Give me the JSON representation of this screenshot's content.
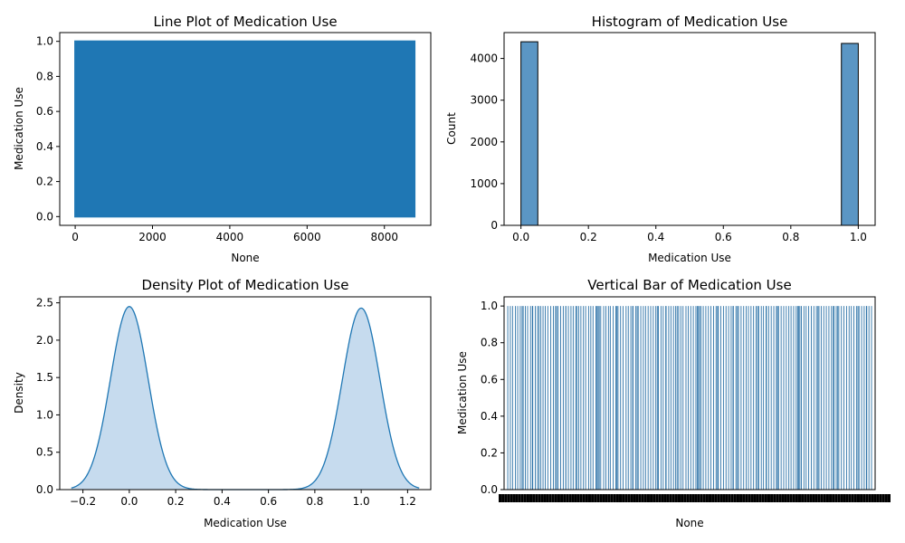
{
  "chart_data": [
    {
      "type": "line",
      "title": "Line Plot of Medication Use",
      "xlabel": "None",
      "ylabel": "Medication Use",
      "xlim": [
        -400,
        9200
      ],
      "ylim": [
        -0.05,
        1.05
      ],
      "xticks": [
        0,
        2000,
        4000,
        6000,
        8000
      ],
      "xtick_labels": [
        "0",
        "2000",
        "4000",
        "6000",
        "8000"
      ],
      "yticks": [
        0,
        0.2,
        0.4,
        0.6,
        0.8,
        1.0
      ],
      "ytick_labels": [
        "0.0",
        "0.2",
        "0.4",
        "0.6",
        "0.8",
        "1.0"
      ],
      "x_range": [
        0,
        8780
      ],
      "values_alternate_between": [
        0,
        1
      ],
      "color": "#1f77b4",
      "grid": false
    },
    {
      "type": "bar",
      "title": "Histogram of Medication Use",
      "xlabel": "Medication Use",
      "ylabel": "Count",
      "xlim": [
        -0.05,
        1.05
      ],
      "ylim": [
        0,
        4620
      ],
      "xticks": [
        0,
        0.2,
        0.4,
        0.6,
        0.8,
        1.0
      ],
      "xtick_labels": [
        "0.0",
        "0.2",
        "0.4",
        "0.6",
        "0.8",
        "1.0"
      ],
      "yticks": [
        0,
        1000,
        2000,
        3000,
        4000
      ],
      "ytick_labels": [
        "0",
        "1000",
        "2000",
        "3000",
        "4000"
      ],
      "bins": [
        {
          "x0": 0.0,
          "x1": 0.05,
          "count": 4400
        },
        {
          "x0": 0.95,
          "x1": 1.0,
          "count": 4360
        }
      ],
      "color": "#5b96c4",
      "edge_color": "#000000",
      "grid": false
    },
    {
      "type": "area",
      "title": "Density Plot of Medication Use",
      "xlabel": "Medication Use",
      "ylabel": "Density",
      "xlim": [
        -0.3,
        1.3
      ],
      "ylim": [
        0,
        2.58
      ],
      "xticks": [
        -0.2,
        0.0,
        0.2,
        0.4,
        0.6,
        0.8,
        1.0,
        1.2
      ],
      "xtick_labels": [
        "−0.2",
        "0.0",
        "0.2",
        "0.4",
        "0.6",
        "0.8",
        "1.0",
        "1.2"
      ],
      "yticks": [
        0,
        0.5,
        1.0,
        1.5,
        2.0,
        2.5
      ],
      "ytick_labels": [
        "0.0",
        "0.5",
        "1.0",
        "1.5",
        "2.0",
        "2.5"
      ],
      "x_span": [
        -0.25,
        1.25
      ],
      "peaks": [
        {
          "center": 0.0,
          "height": 2.45,
          "sigma": 0.081
        },
        {
          "center": 1.0,
          "height": 2.43,
          "sigma": 0.081
        }
      ],
      "line_color": "#1f77b4",
      "fill_color": "#c6dbee",
      "grid": false
    },
    {
      "type": "bar",
      "title": "Vertical Bar of Medication Use",
      "xlabel": "None",
      "ylabel": "Medication Use",
      "ylim": [
        0,
        1.05
      ],
      "yticks": [
        0,
        0.2,
        0.4,
        0.6,
        0.8,
        1.0
      ],
      "ytick_labels": [
        "0.0",
        "0.2",
        "0.4",
        "0.6",
        "0.8",
        "1.0"
      ],
      "category_count": 8780,
      "bar_value": 1.0,
      "visible_bar_positions": [
        0.004,
        0.011,
        0.017,
        0.025,
        0.031,
        0.038,
        0.046,
        0.052,
        0.058,
        0.066,
        0.072,
        0.079,
        0.085,
        0.094,
        0.1,
        0.106,
        0.113,
        0.121,
        0.128,
        0.134,
        0.141,
        0.148,
        0.155,
        0.162,
        0.169,
        0.176,
        0.182,
        0.189,
        0.197,
        0.203,
        0.21,
        0.216,
        0.224,
        0.23,
        0.236,
        0.244,
        0.25,
        0.257,
        0.265,
        0.271,
        0.278,
        0.283,
        0.291,
        0.298,
        0.304,
        0.311,
        0.318,
        0.326,
        0.332,
        0.339,
        0.345,
        0.352,
        0.359,
        0.366,
        0.373,
        0.379,
        0.386,
        0.393,
        0.4,
        0.407,
        0.414,
        0.421,
        0.427,
        0.434,
        0.442,
        0.448,
        0.455,
        0.461,
        0.469,
        0.475,
        0.481,
        0.489,
        0.495,
        0.502,
        0.509,
        0.516,
        0.523,
        0.53,
        0.536,
        0.543,
        0.55,
        0.557,
        0.564,
        0.571,
        0.577,
        0.584,
        0.591,
        0.598,
        0.605,
        0.612,
        0.618,
        0.625,
        0.632,
        0.639,
        0.646,
        0.653,
        0.659,
        0.666,
        0.673,
        0.68,
        0.687,
        0.694,
        0.7,
        0.707,
        0.714,
        0.721,
        0.728,
        0.735,
        0.741,
        0.748,
        0.755,
        0.762,
        0.769,
        0.775,
        0.782,
        0.789,
        0.796,
        0.803,
        0.81,
        0.816,
        0.823,
        0.83,
        0.837,
        0.844,
        0.851,
        0.857,
        0.864,
        0.871,
        0.878,
        0.885,
        0.892,
        0.898,
        0.905,
        0.912,
        0.919,
        0.926,
        0.933,
        0.939,
        0.946,
        0.953,
        0.96,
        0.967,
        0.974,
        0.98,
        0.987,
        0.994,
        0.043,
        0.089,
        0.137,
        0.192,
        0.247,
        0.301,
        0.356,
        0.411,
        0.465,
        0.52,
        0.575,
        0.629,
        0.684,
        0.738,
        0.793,
        0.848,
        0.902,
        0.957,
        0.071,
        0.162,
        0.253,
        0.344,
        0.435,
        0.526,
        0.617,
        0.708,
        0.799,
        0.89,
        0.981
      ],
      "bar_color": "#2d73a8",
      "grid": false
    }
  ]
}
